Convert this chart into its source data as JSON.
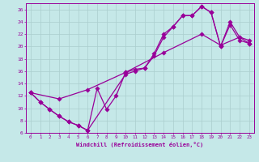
{
  "xlabel": "Windchill (Refroidissement éolien,°C)",
  "xlim": [
    -0.5,
    23.5
  ],
  "ylim": [
    6,
    27
  ],
  "xticks": [
    0,
    1,
    2,
    3,
    4,
    5,
    6,
    7,
    8,
    9,
    10,
    11,
    12,
    13,
    14,
    15,
    16,
    17,
    18,
    19,
    20,
    21,
    22,
    23
  ],
  "yticks": [
    6,
    8,
    10,
    12,
    14,
    16,
    18,
    20,
    22,
    24,
    26
  ],
  "bg_color": "#c5e8e8",
  "line_color": "#990099",
  "grid_color": "#aacece",
  "line1_x": [
    0,
    1,
    2,
    3,
    4,
    5,
    6,
    7,
    8,
    9,
    10,
    11,
    12,
    13,
    14,
    15,
    16,
    17,
    18,
    19,
    20,
    21,
    22,
    23
  ],
  "line1_y": [
    12.5,
    11.0,
    9.8,
    8.7,
    7.8,
    7.2,
    6.4,
    13.2,
    9.8,
    12.0,
    15.8,
    16.3,
    16.5,
    18.8,
    22.0,
    23.2,
    25.0,
    25.0,
    26.5,
    25.5,
    20.0,
    24.0,
    21.5,
    21.0
  ],
  "line2_x": [
    0,
    1,
    2,
    3,
    4,
    5,
    6,
    10,
    11,
    12,
    13,
    14,
    15,
    16,
    17,
    18,
    19,
    20,
    21,
    22,
    23
  ],
  "line2_y": [
    12.5,
    11.0,
    9.8,
    8.7,
    7.8,
    7.2,
    6.4,
    15.5,
    16.0,
    16.5,
    18.5,
    21.5,
    23.2,
    25.0,
    25.0,
    26.5,
    25.5,
    20.0,
    23.5,
    21.0,
    20.5
  ],
  "line3_x": [
    0,
    3,
    6,
    10,
    14,
    18,
    20,
    22,
    23
  ],
  "line3_y": [
    12.5,
    11.5,
    13.0,
    15.8,
    19.0,
    22.0,
    20.2,
    21.5,
    20.5
  ]
}
